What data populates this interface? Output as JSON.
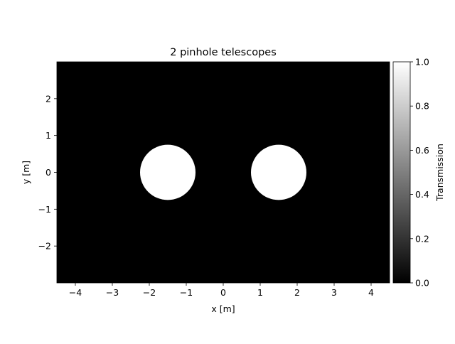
{
  "chart_data": {
    "type": "heatmap",
    "title": "2 pinhole telescopes",
    "xlabel": "x [m]",
    "ylabel": "y [m]",
    "xlim": [
      -4.5,
      4.5
    ],
    "ylim": [
      -3.0,
      3.0
    ],
    "xticks": [
      -4,
      -3,
      -2,
      -1,
      0,
      1,
      2,
      3,
      4
    ],
    "xtick_labels": [
      "−4",
      "−3",
      "−2",
      "−1",
      "0",
      "1",
      "2",
      "3",
      "4"
    ],
    "yticks": [
      -2,
      -1,
      0,
      1,
      2
    ],
    "ytick_labels": [
      "−2",
      "−1",
      "0",
      "1",
      "2"
    ],
    "grid": false,
    "colormap": "gray",
    "background_value": 0.0,
    "apertures": [
      {
        "center_x": -1.5,
        "center_y": 0.0,
        "radius": 0.75,
        "value": 1.0
      },
      {
        "center_x": 1.5,
        "center_y": 0.0,
        "radius": 0.75,
        "value": 1.0
      }
    ],
    "colorbar": {
      "label": "Transmission",
      "range": [
        0.0,
        1.0
      ],
      "ticks": [
        0.0,
        0.2,
        0.4,
        0.6,
        0.8,
        1.0
      ],
      "tick_labels": [
        "0.0",
        "0.2",
        "0.4",
        "0.6",
        "0.8",
        "1.0"
      ]
    }
  }
}
